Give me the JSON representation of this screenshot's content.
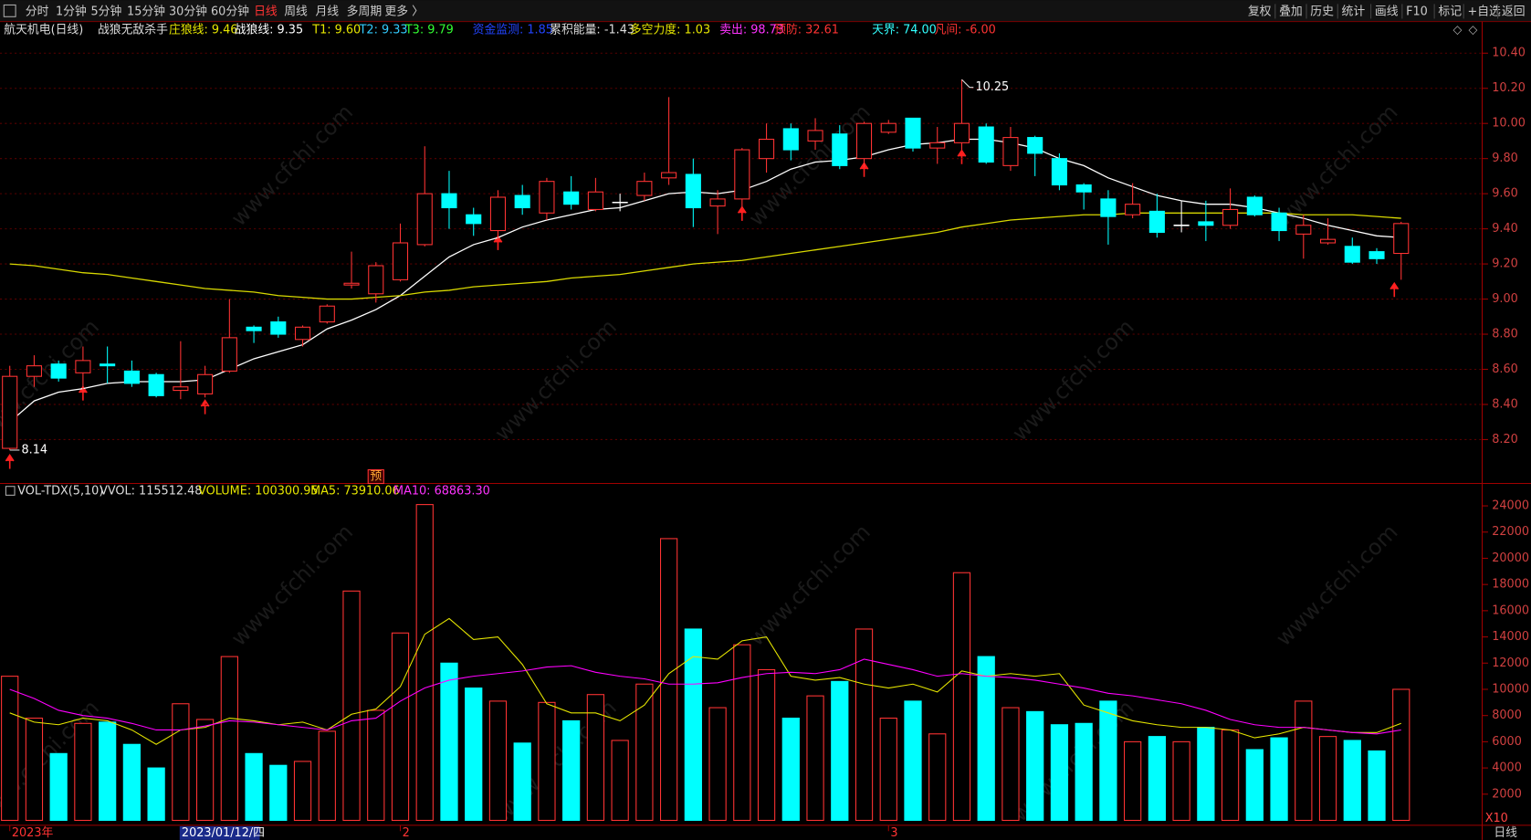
{
  "toolbar": {
    "periods": [
      "分时",
      "1分钟",
      "5分钟",
      "15分钟",
      "30分钟",
      "60分钟",
      "日线",
      "周线",
      "月线",
      "多周期",
      "更多 〉"
    ],
    "active": "日线",
    "tools": [
      "复权",
      "叠加",
      "历史",
      "统计",
      "画线",
      "F10",
      "标记",
      "+自选",
      "返回"
    ]
  },
  "info_bar": [
    {
      "text": "航天机电(日线)",
      "color": "#dddddd"
    },
    {
      "text": "战狼无敌杀手",
      "color": "#dddddd"
    },
    {
      "text": "庄狼线: 9.46",
      "color": "#e6e600"
    },
    {
      "text": "战狼线: 9.35",
      "color": "#ffffff"
    },
    {
      "text": "T1: 9.60",
      "color": "#e6e600"
    },
    {
      "text": "T2: 9.33",
      "color": "#33ccff"
    },
    {
      "text": "T3: 9.79",
      "color": "#33ff33"
    },
    {
      "text": "资金监测: 1.85",
      "color": "#2244ff"
    },
    {
      "text": "累积能量: -1.43",
      "color": "#dddddd"
    },
    {
      "text": "多空力度: 1.03",
      "color": "#e6e600"
    },
    {
      "text": "卖出: 98.73",
      "color": "#ff33ff"
    },
    {
      "text": "预防: 32.61",
      "color": "#ff3333"
    },
    {
      "text": "天界: 74.00",
      "color": "#33ffff"
    },
    {
      "text": "凡间: -6.00",
      "color": "#ff3333"
    }
  ],
  "volume_info": [
    {
      "text": "VOL-TDX(5,10)",
      "color": "#dddddd"
    },
    {
      "text": "VVOL: 115512.48",
      "color": "#dddddd"
    },
    {
      "text": "VOLUME: 100300.95",
      "color": "#e6e600"
    },
    {
      "text": "MA5: 73910.06",
      "color": "#e6e600"
    },
    {
      "text": "MA10: 68863.30",
      "color": "#ff33ff"
    }
  ],
  "cursor_label": "2023/01/12/四",
  "forecast_mark": "预",
  "scale_label": "X10",
  "period_label": "日线",
  "watermark": "www.cfchi.com",
  "chart_data": [
    {
      "type": "candlestick",
      "up_color": "#ff3333",
      "down_color": "#00ffff",
      "grid": true,
      "categories": [
        "2023年",
        null,
        null,
        null,
        null,
        null,
        null,
        null,
        null,
        null,
        null,
        null,
        null,
        null,
        null,
        null,
        "2",
        null,
        null,
        null,
        null,
        null,
        null,
        null,
        null,
        null,
        null,
        null,
        null,
        null,
        null,
        null,
        null,
        null,
        null,
        null,
        "3",
        null,
        null,
        null,
        null,
        null,
        null,
        null,
        null,
        null,
        null,
        null,
        null,
        null,
        null,
        null,
        null,
        null,
        null,
        null,
        null,
        null
      ],
      "open": [
        8.15,
        8.56,
        8.63,
        8.58,
        8.63,
        8.59,
        8.57,
        8.48,
        8.46,
        8.59,
        8.84,
        8.87,
        8.77,
        8.87,
        9.08,
        9.03,
        9.11,
        9.31,
        9.6,
        9.48,
        9.39,
        9.59,
        9.49,
        9.61,
        9.51,
        9.55,
        9.59,
        9.69,
        9.71,
        9.53,
        9.57,
        9.8,
        9.97,
        9.9,
        9.94,
        9.8,
        9.95,
        10.03,
        9.86,
        9.89,
        9.98,
        9.76,
        9.92,
        9.8,
        9.65,
        9.57,
        9.48,
        9.5,
        9.42,
        9.44,
        9.42,
        9.58,
        9.49,
        9.37,
        9.32,
        9.3,
        9.27,
        9.26
      ],
      "high": [
        8.62,
        8.68,
        8.65,
        8.73,
        8.73,
        8.65,
        8.58,
        8.76,
        8.62,
        9.0,
        8.85,
        8.9,
        8.85,
        8.97,
        9.27,
        9.21,
        9.43,
        9.87,
        9.73,
        9.52,
        9.62,
        9.65,
        9.69,
        9.7,
        9.69,
        9.6,
        9.72,
        10.15,
        9.8,
        9.62,
        9.86,
        10.0,
        10.0,
        10.03,
        9.99,
        10.01,
        10.02,
        10.03,
        9.98,
        10.25,
        10.0,
        9.98,
        9.93,
        9.83,
        9.66,
        9.62,
        9.66,
        9.6,
        9.56,
        9.56,
        9.63,
        9.59,
        9.52,
        9.48,
        9.46,
        9.35,
        9.29,
        9.44
      ],
      "low": [
        8.14,
        8.5,
        8.53,
        8.47,
        8.52,
        8.5,
        8.44,
        8.43,
        8.44,
        8.58,
        8.75,
        8.78,
        8.73,
        8.86,
        9.06,
        8.98,
        9.1,
        9.3,
        9.4,
        9.36,
        9.34,
        9.48,
        9.45,
        9.51,
        9.5,
        9.5,
        9.56,
        9.65,
        9.41,
        9.37,
        9.52,
        9.72,
        9.79,
        9.85,
        9.74,
        9.75,
        9.94,
        9.84,
        9.77,
        9.85,
        9.77,
        9.73,
        9.7,
        9.62,
        9.51,
        9.31,
        9.46,
        9.35,
        9.38,
        9.33,
        9.4,
        9.47,
        9.33,
        9.23,
        9.31,
        9.2,
        9.2,
        9.11
      ],
      "close": [
        8.56,
        8.62,
        8.55,
        8.65,
        8.62,
        8.52,
        8.45,
        8.5,
        8.57,
        8.78,
        8.82,
        8.8,
        8.84,
        8.96,
        9.09,
        9.19,
        9.32,
        9.6,
        9.52,
        9.43,
        9.58,
        9.52,
        9.67,
        9.54,
        9.61,
        9.55,
        9.67,
        9.72,
        9.52,
        9.57,
        9.85,
        9.91,
        9.85,
        9.96,
        9.76,
        10.0,
        10.0,
        9.86,
        9.89,
        10.0,
        9.78,
        9.92,
        9.83,
        9.65,
        9.61,
        9.47,
        9.54,
        9.38,
        9.42,
        9.42,
        9.51,
        9.48,
        9.39,
        9.42,
        9.34,
        9.21,
        9.23,
        9.43
      ],
      "series": [
        {
          "color": "#ffffff",
          "values": [
            8.3,
            8.42,
            8.47,
            8.49,
            8.52,
            8.53,
            8.53,
            8.53,
            8.54,
            8.6,
            8.66,
            8.7,
            8.74,
            8.83,
            8.88,
            8.94,
            9.02,
            9.13,
            9.24,
            9.31,
            9.35,
            9.41,
            9.45,
            9.48,
            9.51,
            9.52,
            9.56,
            9.6,
            9.61,
            9.6,
            9.62,
            9.67,
            9.74,
            9.78,
            9.79,
            9.81,
            9.85,
            9.88,
            9.89,
            9.91,
            9.91,
            9.89,
            9.86,
            9.8,
            9.76,
            9.69,
            9.64,
            9.59,
            9.56,
            9.54,
            9.54,
            9.52,
            9.49,
            9.46,
            9.42,
            9.39,
            9.36,
            9.35
          ]
        },
        {
          "color": "#d8d800",
          "values": [
            9.2,
            9.19,
            9.17,
            9.15,
            9.14,
            9.12,
            9.1,
            9.08,
            9.06,
            9.05,
            9.04,
            9.02,
            9.01,
            9.0,
            9.0,
            9.01,
            9.02,
            9.04,
            9.05,
            9.07,
            9.08,
            9.09,
            9.1,
            9.12,
            9.13,
            9.14,
            9.16,
            9.18,
            9.2,
            9.21,
            9.22,
            9.24,
            9.26,
            9.28,
            9.3,
            9.32,
            9.34,
            9.36,
            9.38,
            9.41,
            9.43,
            9.45,
            9.46,
            9.47,
            9.48,
            9.48,
            9.49,
            9.49,
            9.49,
            9.49,
            9.49,
            9.49,
            9.49,
            9.48,
            9.48,
            9.48,
            9.47,
            9.46
          ]
        }
      ],
      "ylim": [
        7.95,
        10.58
      ],
      "yticks": [
        {
          "value": 10.4,
          "label": "10.40"
        },
        {
          "value": 10.2,
          "label": "10.20"
        },
        {
          "value": 10,
          "label": "10.00"
        },
        {
          "value": 9.8,
          "label": "9.80"
        },
        {
          "value": 9.6,
          "label": "9.60"
        },
        {
          "value": 9.4,
          "label": "9.40"
        },
        {
          "value": 9.2,
          "label": "9.20"
        },
        {
          "value": 9,
          "label": "9.00"
        },
        {
          "value": 8.8,
          "label": "8.80"
        },
        {
          "value": 8.6,
          "label": "8.60"
        },
        {
          "value": 8.4,
          "label": "8.40"
        },
        {
          "value": 8.2,
          "label": "8.20"
        }
      ]
    },
    {
      "type": "bar",
      "values": [
        11000,
        7800,
        5100,
        7400,
        7500,
        5800,
        4000,
        8900,
        7700,
        12500,
        5100,
        4200,
        4500,
        6800,
        17500,
        8400,
        14300,
        24100,
        12000,
        10100,
        9100,
        5900,
        9000,
        7600,
        9600,
        6100,
        10400,
        21500,
        14600,
        8600,
        13400,
        11500,
        7800,
        9500,
        10600,
        14600,
        7800,
        9100,
        6600,
        18900,
        12500,
        8600,
        8300,
        7300,
        7400,
        9100,
        6000,
        6400,
        6000,
        7100,
        6900,
        5400,
        6300,
        9100,
        6400,
        6100,
        5300,
        10000
      ],
      "series": [
        {
          "color": "#e6e600",
          "values": [
            8200,
            7500,
            7300,
            7800,
            7600,
            6900,
            5800,
            6900,
            7100,
            7800,
            7600,
            7300,
            7500,
            6900,
            8100,
            8500,
            10200,
            14200,
            15400,
            13800,
            14000,
            11900,
            8900,
            8200,
            8200,
            7600,
            8800,
            11200,
            12500,
            12300,
            13700,
            14000,
            11000,
            10700,
            10900,
            10400,
            10100,
            10400,
            9800,
            11400,
            11000,
            11200,
            11000,
            11200,
            8800,
            8200,
            7600,
            7300,
            7100,
            7100,
            6900,
            6300,
            6600,
            7100,
            6900,
            6700,
            6700,
            7400
          ]
        },
        {
          "color": "#ff00ff",
          "values": [
            10000,
            9300,
            8400,
            8000,
            7800,
            7400,
            6900,
            6900,
            7200,
            7600,
            7500,
            7300,
            7100,
            6900,
            7600,
            7800,
            9100,
            10100,
            10700,
            11000,
            11200,
            11400,
            11700,
            11800,
            11300,
            11000,
            10800,
            10400,
            10400,
            10500,
            10900,
            11200,
            11300,
            11200,
            11500,
            12300,
            11900,
            11500,
            11000,
            11200,
            11000,
            10900,
            10700,
            10400,
            10100,
            9700,
            9500,
            9200,
            8900,
            8400,
            7700,
            7300,
            7100,
            7100,
            6900,
            6700,
            6600,
            6900
          ]
        }
      ],
      "ylim": [
        0,
        25560
      ],
      "yticks": [
        2000,
        4000,
        6000,
        8000,
        10000,
        12000,
        14000,
        16000,
        18000,
        20000,
        22000,
        24000
      ]
    }
  ]
}
